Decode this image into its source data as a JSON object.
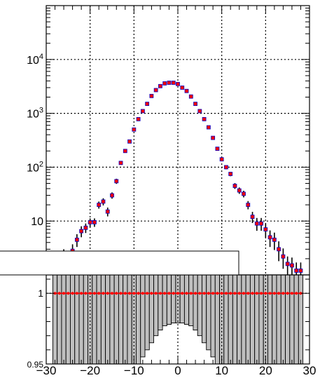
{
  "chart_data": [
    {
      "type": "scatter",
      "panel": "top",
      "title": "",
      "xlabel": "",
      "ylabel": "",
      "xlim": [
        -30,
        30
      ],
      "ylim": [
        1,
        100000
      ],
      "yscale": "log",
      "grid": true,
      "y_tick_labels": [
        {
          "v": 10,
          "label": "10"
        },
        {
          "v": 100,
          "label": "10",
          "sup": "2"
        },
        {
          "v": 1000,
          "label": "10",
          "sup": "3"
        },
        {
          "v": 10000,
          "label": "10",
          "sup": "4"
        }
      ],
      "series": [
        {
          "marker_color": "#ff0000",
          "outline_color": "#0000cc",
          "x": [
            -28,
            -27,
            -26,
            -25,
            -24,
            -23,
            -22,
            -21,
            -20,
            -19,
            -18,
            -17,
            -16,
            -15,
            -14,
            -13,
            -12,
            -11,
            -10,
            -9,
            -8,
            -7,
            -6,
            -5,
            -4,
            -3,
            -2,
            -1,
            0,
            1,
            2,
            3,
            4,
            5,
            6,
            7,
            8,
            9,
            10,
            11,
            12,
            13,
            14,
            15,
            16,
            17,
            18,
            19,
            20,
            21,
            22,
            23,
            24,
            25,
            26,
            27,
            28
          ],
          "y": [
            1.5,
            2.0,
            2.2,
            1.5,
            2.8,
            4.5,
            6.5,
            7.5,
            9.5,
            9.5,
            20,
            23,
            15,
            30,
            55,
            120,
            200,
            300,
            500,
            780,
            1100,
            1500,
            2100,
            2700,
            3200,
            3600,
            3700,
            3700,
            3500,
            3000,
            2600,
            2050,
            1500,
            1100,
            780,
            550,
            350,
            220,
            140,
            100,
            75,
            45,
            37,
            32,
            20,
            12,
            9,
            9,
            7,
            5,
            4.5,
            3.0,
            2.2,
            1.6,
            1.5,
            1.2,
            1.2
          ],
          "err": [
            0.6,
            0.8,
            0.8,
            0.6,
            0.9,
            1.2,
            1.5,
            1.5,
            1.7,
            1.7,
            3,
            3.5,
            2.8,
            4,
            6,
            9,
            11,
            14,
            17,
            22,
            26,
            31,
            36,
            41,
            45,
            48,
            49,
            49,
            47,
            44,
            41,
            36,
            31,
            26,
            22,
            18,
            15,
            12,
            10,
            8.5,
            7,
            5.5,
            5,
            4.5,
            3.5,
            2.8,
            2.4,
            2.4,
            2.1,
            1.7,
            1.6,
            1.2,
            0.9,
            0.6,
            0.6,
            0.5,
            0.5
          ]
        }
      ]
    },
    {
      "type": "scatter",
      "panel": "ratio",
      "xlim": [
        -30,
        30
      ],
      "ylim": [
        0.95,
        1.013
      ],
      "grid": true,
      "y_tick_labels": [
        {
          "v": 0.95,
          "label": "0.95"
        },
        {
          "v": 1.0,
          "label": "1"
        }
      ],
      "x_tick_labels": [
        "−30",
        "−20",
        "−10",
        "0",
        "10",
        "20",
        "30"
      ],
      "x_ticks": [
        -30,
        -20,
        -10,
        0,
        10,
        20,
        30
      ],
      "band_color": "#bfbfbf",
      "point_color": "#ff0000",
      "x": [
        -28,
        -27,
        -26,
        -25,
        -24,
        -23,
        -22,
        -21,
        -20,
        -19,
        -18,
        -17,
        -16,
        -15,
        -14,
        -13,
        -12,
        -11,
        -10,
        -9,
        -8,
        -7,
        -6,
        -5,
        -4,
        -3,
        -2,
        -1,
        0,
        1,
        2,
        3,
        4,
        5,
        6,
        7,
        8,
        9,
        10,
        11,
        12,
        13,
        14,
        15,
        16,
        17,
        18,
        19,
        20,
        21,
        22,
        23,
        24,
        25,
        26,
        27,
        28
      ],
      "y_value": 1.0,
      "band_half_width": [
        0.06,
        0.06,
        0.06,
        0.06,
        0.06,
        0.06,
        0.06,
        0.06,
        0.06,
        0.06,
        0.06,
        0.06,
        0.06,
        0.06,
        0.06,
        0.06,
        0.06,
        0.06,
        0.06,
        0.052,
        0.045,
        0.04,
        0.035,
        0.03,
        0.026,
        0.023,
        0.022,
        0.021,
        0.021,
        0.021,
        0.022,
        0.023,
        0.026,
        0.03,
        0.035,
        0.04,
        0.045,
        0.052,
        0.06,
        0.06,
        0.06,
        0.06,
        0.06,
        0.06,
        0.06,
        0.06,
        0.06,
        0.06,
        0.06,
        0.06,
        0.06,
        0.06,
        0.06,
        0.06,
        0.06,
        0.06,
        0.06
      ]
    }
  ]
}
